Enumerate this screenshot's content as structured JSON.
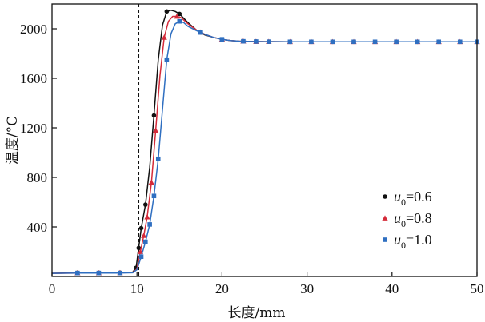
{
  "chart_data": {
    "type": "line",
    "xlabel": "长度/mm",
    "ylabel": "温度/°C",
    "xlim": [
      0,
      50
    ],
    "ylim": [
      0,
      2200
    ],
    "xticks": [
      0,
      10,
      20,
      30,
      40,
      50
    ],
    "yticks": [
      400,
      800,
      1200,
      1600,
      2000
    ],
    "xtick_labels": [
      "0",
      "10",
      "20",
      "30",
      "40",
      "50"
    ],
    "ytick_labels": [
      "400",
      "800",
      "1200",
      "1600",
      "2000"
    ],
    "reference_line_x": 10.2,
    "legend_position": "center-right",
    "grid": false,
    "series": [
      {
        "name": "u0=0.6",
        "name_base": "u",
        "name_sub": "0",
        "name_value": "=0.6",
        "color": "#111111",
        "marker": "circle",
        "x": [
          0,
          3,
          5.5,
          8,
          9.5,
          9.9,
          10.2,
          10.5,
          11,
          11.5,
          12,
          12.5,
          13,
          13.5,
          14,
          14.5,
          15,
          16,
          17,
          18,
          19,
          20,
          21,
          22,
          23,
          24,
          25,
          26,
          28,
          30,
          32,
          34,
          36,
          38,
          40,
          42,
          44,
          46,
          48,
          50
        ],
        "y": [
          25,
          30,
          30,
          30,
          35,
          70,
          230,
          390,
          580,
          880,
          1300,
          1750,
          2030,
          2140,
          2150,
          2140,
          2120,
          2050,
          1990,
          1950,
          1930,
          1915,
          1905,
          1900,
          1898,
          1897,
          1896,
          1896,
          1895,
          1895,
          1895,
          1895,
          1895,
          1895,
          1895,
          1895,
          1895,
          1895,
          1895,
          1895
        ],
        "marker_x": [
          3,
          5.5,
          8,
          9.9,
          10.2,
          10.5,
          11,
          12,
          13.5,
          15,
          17.5,
          20,
          22.5,
          24,
          25.5,
          28,
          30.5,
          33,
          35.5,
          38,
          40.5,
          43,
          45.5,
          48,
          50
        ]
      },
      {
        "name": "u0=0.8",
        "name_base": "u",
        "name_sub": "0",
        "name_value": "=0.8",
        "color": "#d42b3a",
        "marker": "triangle",
        "x": [
          0,
          3,
          5.5,
          8,
          9.5,
          10,
          10.4,
          10.8,
          11.2,
          11.7,
          12.2,
          12.7,
          13.2,
          13.7,
          14.2,
          14.7,
          15.2,
          16,
          17,
          18,
          19,
          20,
          21,
          22,
          23,
          24,
          25,
          26,
          28,
          30,
          32,
          34,
          36,
          38,
          40,
          42,
          44,
          46,
          48,
          50
        ],
        "y": [
          25,
          28,
          28,
          30,
          32,
          60,
          200,
          330,
          480,
          760,
          1180,
          1620,
          1930,
          2060,
          2100,
          2100,
          2090,
          2040,
          1990,
          1955,
          1930,
          1915,
          1905,
          1900,
          1898,
          1897,
          1896,
          1896,
          1895,
          1895,
          1895,
          1895,
          1895,
          1895,
          1895,
          1895,
          1895,
          1895,
          1895,
          1895
        ],
        "marker_x": [
          3,
          5.5,
          8,
          10.4,
          10.8,
          11.2,
          11.7,
          12.2,
          13.2,
          14.7,
          17.5,
          20,
          22.5,
          24,
          25.5,
          28,
          30.5,
          33,
          35.5,
          38,
          40.5,
          43,
          45.5,
          48,
          50
        ]
      },
      {
        "name": "u0=1.0",
        "name_base": "u",
        "name_sub": "0",
        "name_value": "=1.0",
        "color": "#2f6fc1",
        "marker": "square",
        "x": [
          0,
          3,
          5.5,
          8,
          9.5,
          10,
          10.5,
          11,
          11.5,
          12,
          12.5,
          13,
          13.5,
          14,
          14.5,
          15,
          15.5,
          16,
          17,
          18,
          19,
          20,
          21,
          22,
          23,
          24,
          25,
          26,
          28,
          30,
          32,
          34,
          36,
          38,
          40,
          42,
          44,
          46,
          48,
          50
        ],
        "y": [
          25,
          28,
          28,
          28,
          30,
          55,
          160,
          280,
          420,
          650,
          950,
          1350,
          1750,
          1960,
          2040,
          2060,
          2050,
          2020,
          1985,
          1955,
          1930,
          1915,
          1905,
          1900,
          1898,
          1897,
          1896,
          1896,
          1895,
          1895,
          1895,
          1895,
          1895,
          1895,
          1895,
          1895,
          1895,
          1895,
          1895,
          1895
        ],
        "marker_x": [
          3,
          5.5,
          8,
          10.5,
          11,
          11.5,
          12,
          12.5,
          13.5,
          15,
          17.5,
          20,
          22.5,
          24,
          25.5,
          28,
          30.5,
          33,
          35.5,
          38,
          40.5,
          43,
          45.5,
          48,
          50
        ]
      }
    ]
  }
}
